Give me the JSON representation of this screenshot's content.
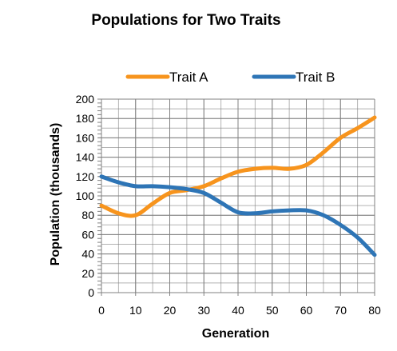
{
  "chart_data": {
    "type": "line",
    "title": "Populations for Two Traits",
    "xlabel": "Generation",
    "ylabel": "Population (thousands)",
    "xlim": [
      0,
      80
    ],
    "ylim": [
      0,
      200
    ],
    "x_ticks": [
      0,
      10,
      20,
      30,
      40,
      50,
      60,
      70,
      80
    ],
    "y_ticks": [
      0,
      20,
      40,
      60,
      80,
      100,
      120,
      140,
      160,
      180,
      200
    ],
    "grid": true,
    "legend_position": "top",
    "x": [
      0,
      5,
      10,
      15,
      20,
      25,
      30,
      35,
      40,
      45,
      50,
      55,
      60,
      65,
      70,
      75,
      80
    ],
    "series": [
      {
        "name": "Trait A",
        "color": "#f7941d",
        "values": [
          90,
          82,
          80,
          92,
          103,
          106,
          110,
          118,
          125,
          128,
          129,
          128,
          132,
          145,
          160,
          170,
          181
        ]
      },
      {
        "name": "Trait B",
        "color": "#2e75b6",
        "values": [
          120,
          114,
          110,
          110,
          109,
          107,
          103,
          93,
          83,
          82,
          84,
          85,
          85,
          80,
          70,
          57,
          39
        ]
      }
    ]
  }
}
